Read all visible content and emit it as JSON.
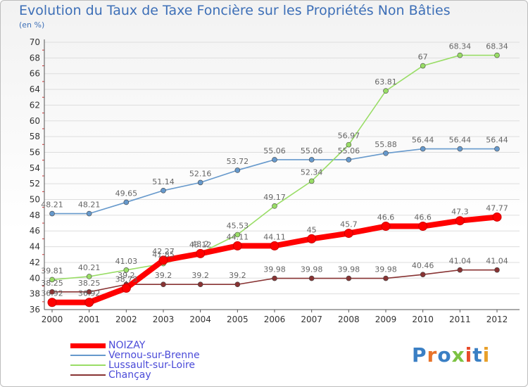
{
  "header": {
    "title": "Evolution du Taux de Taxe Foncière sur les Propriétés Non Bâties",
    "subtitle": "(en %)"
  },
  "logo": {
    "text": "Proxiti",
    "colors": [
      "#3a7fc4",
      "#e8732a",
      "#3a7fc4",
      "#7cc242",
      "#e84a2a",
      "#3a7fc4",
      "#e8a02a"
    ]
  },
  "chart_data": {
    "type": "line",
    "title": "Evolution du Taux de Taxe Foncière sur les Propriétés Non Bâties",
    "subtitle": "(en %)",
    "x": [
      "2000",
      "2001",
      "2002",
      "2003",
      "2004",
      "2005",
      "2006",
      "2007",
      "2008",
      "2009",
      "2010",
      "2011",
      "2012"
    ],
    "ylim": [
      36,
      70
    ],
    "yticks": [
      36,
      38,
      40,
      42,
      44,
      46,
      48,
      50,
      52,
      54,
      56,
      58,
      60,
      62,
      64,
      66,
      68,
      70
    ],
    "grid": "horizontal",
    "legend_position": "bottom-left",
    "series": [
      {
        "name": "NOIZAY",
        "color": "#ff0000",
        "values": [
          36.92,
          36.92,
          38.73,
          42.27,
          43.12,
          44.11,
          44.11,
          45,
          45.7,
          46.6,
          46.6,
          47.3,
          47.77
        ],
        "labels": [
          "36.92",
          "36.92",
          "38.73",
          "42.27",
          "43.12",
          "44.11",
          "44.11",
          "45",
          "45.7",
          "46.6",
          "46.6",
          "47.3",
          "47.77"
        ]
      },
      {
        "name": "Vernou-sur-Brenne",
        "color": "#6699cc",
        "values": [
          48.21,
          48.21,
          49.65,
          51.14,
          52.16,
          53.72,
          55.06,
          55.06,
          55.06,
          55.88,
          56.44,
          56.44,
          56.44
        ],
        "labels": [
          "48.21",
          "48.21",
          "49.65",
          "51.14",
          "52.16",
          "53.72",
          "55.06",
          "55.06",
          "55.06",
          "55.88",
          "56.44",
          "56.44",
          "56.44"
        ]
      },
      {
        "name": "Lussault-sur-Loire",
        "color": "#99dd66",
        "values": [
          39.81,
          40.21,
          41.03,
          41.85,
          43.2,
          45.53,
          49.17,
          52.34,
          56.97,
          63.81,
          67,
          68.34,
          68.34
        ],
        "labels": [
          "39.81",
          "40.21",
          "41.03",
          "41.85",
          "43.2",
          "45.53",
          "49.17",
          "52.34",
          "56.97",
          "63.81",
          "67",
          "68.34",
          "68.34"
        ]
      },
      {
        "name": "Chançay",
        "color": "#883333",
        "values": [
          38.25,
          38.25,
          39.2,
          39.2,
          39.2,
          39.2,
          39.98,
          39.98,
          39.98,
          39.98,
          40.46,
          41.04,
          41.04
        ],
        "labels": [
          "38.25",
          "38.25",
          "39.2",
          "39.2",
          "39.2",
          "39.2",
          "39.98",
          "39.98",
          "39.98",
          "39.98",
          "40.46",
          "41.04",
          "41.04"
        ]
      }
    ]
  }
}
